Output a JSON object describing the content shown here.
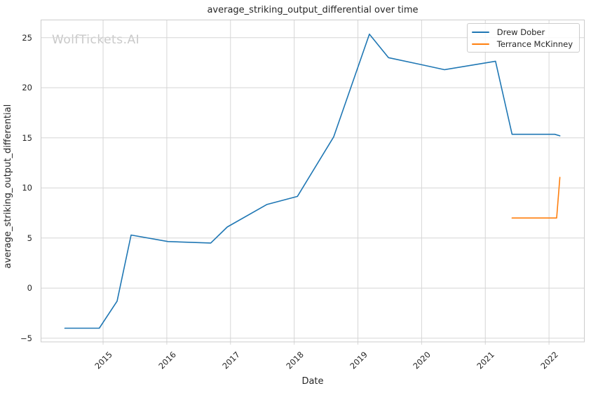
{
  "watermark": "WolfTickets.AI",
  "colors": {
    "grid": "#d6d6d6",
    "spine": "#cccccc",
    "text": "#262626",
    "watermark": "#c9c9c9",
    "background": "#ffffff"
  },
  "chart_data": {
    "type": "line",
    "title": "average_striking_output_differential over time",
    "xlabel": "Date",
    "ylabel": "average_striking_output_differential",
    "grid": true,
    "legend_position": "upper right",
    "xlim": [
      2014.02,
      2022.56
    ],
    "ylim": [
      -5.4,
      26.8
    ],
    "xticks": [
      2015,
      2016,
      2017,
      2018,
      2019,
      2020,
      2021,
      2022
    ],
    "yticks": [
      -5,
      0,
      5,
      10,
      15,
      20,
      25
    ],
    "series": [
      {
        "name": "Drew Dober",
        "color": "#1f77b4",
        "points": [
          [
            2014.4,
            -4.0
          ],
          [
            2014.94,
            -4.0
          ],
          [
            2015.22,
            -1.3
          ],
          [
            2015.44,
            5.3
          ],
          [
            2016.02,
            4.65
          ],
          [
            2016.69,
            4.5
          ],
          [
            2016.95,
            6.1
          ],
          [
            2017.57,
            8.35
          ],
          [
            2018.05,
            9.15
          ],
          [
            2018.62,
            15.1
          ],
          [
            2019.18,
            25.35
          ],
          [
            2019.48,
            23.0
          ],
          [
            2020.0,
            22.3
          ],
          [
            2020.36,
            21.8
          ],
          [
            2021.16,
            22.65
          ],
          [
            2021.42,
            15.35
          ],
          [
            2022.09,
            15.35
          ],
          [
            2022.17,
            15.2
          ]
        ]
      },
      {
        "name": "Terrance McKinney",
        "color": "#ff7f0e",
        "points": [
          [
            2021.42,
            7.0
          ],
          [
            2022.12,
            7.0
          ],
          [
            2022.17,
            11.05
          ]
        ]
      }
    ]
  }
}
